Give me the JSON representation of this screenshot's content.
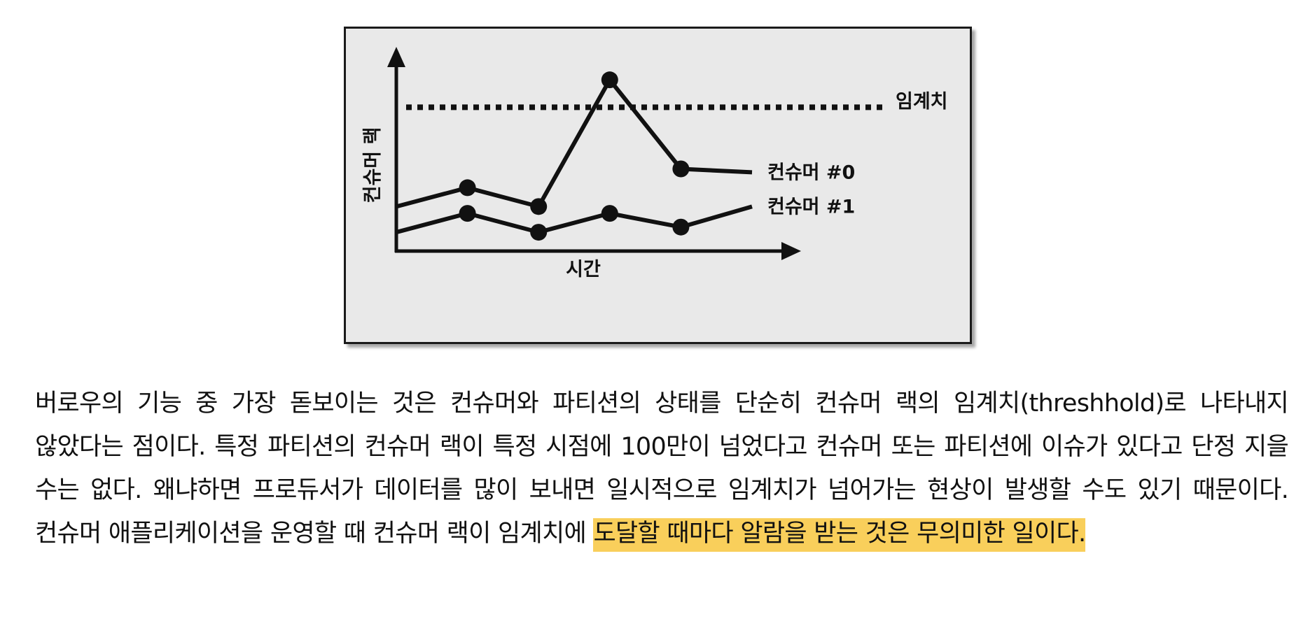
{
  "chart_data": {
    "type": "line",
    "x": [
      1,
      2,
      3,
      4,
      5,
      6
    ],
    "series": [
      {
        "name": "컨슈머 #0",
        "values": [
          0.26,
          0.37,
          0.26,
          1.0,
          0.48,
          0.46
        ],
        "markers": [
          false,
          true,
          true,
          true,
          true,
          false
        ]
      },
      {
        "name": "컨슈머 #1",
        "values": [
          0.11,
          0.22,
          0.11,
          0.22,
          0.14,
          0.26
        ],
        "markers": [
          false,
          true,
          true,
          true,
          true,
          false
        ]
      }
    ],
    "threshold": {
      "label": "임계치",
      "value": 0.84
    },
    "xlabel": "시간",
    "ylabel": "컨슈머 랙",
    "ylim": [
      0,
      1.16
    ],
    "axis_ticks": false,
    "grid": false
  },
  "article": {
    "text_before": "버로우의 기능 중 가장 돋보이는 것은 컨슈머와 파티션의 상태를 단순히 컨슈머 랙의 임계치(threshhold)로 나타내지 않았다는 점이다. 특정 파티션의 컨슈머 랙이 특정 시점에 100만이 넘었다고 컨슈머 또는 파티션에 이슈가 있다고 단정 지을 수는 없다. 왜냐하면 프로듀서가 데이터를 많이 보내면 일시적으로 임계치가 넘어가는 현상이 발생할 수도 있기 때문이다. 컨슈머 애플리케이션을 운영할 때 컨슈머 랙이 임계치에 ",
    "highlighted": "도달할 때마다 알람을 받는 것은 무의미한 일이다."
  },
  "colors": {
    "figure_background": "#e9e9e9",
    "line": "#111111",
    "highlight": "#f9cf5b"
  }
}
